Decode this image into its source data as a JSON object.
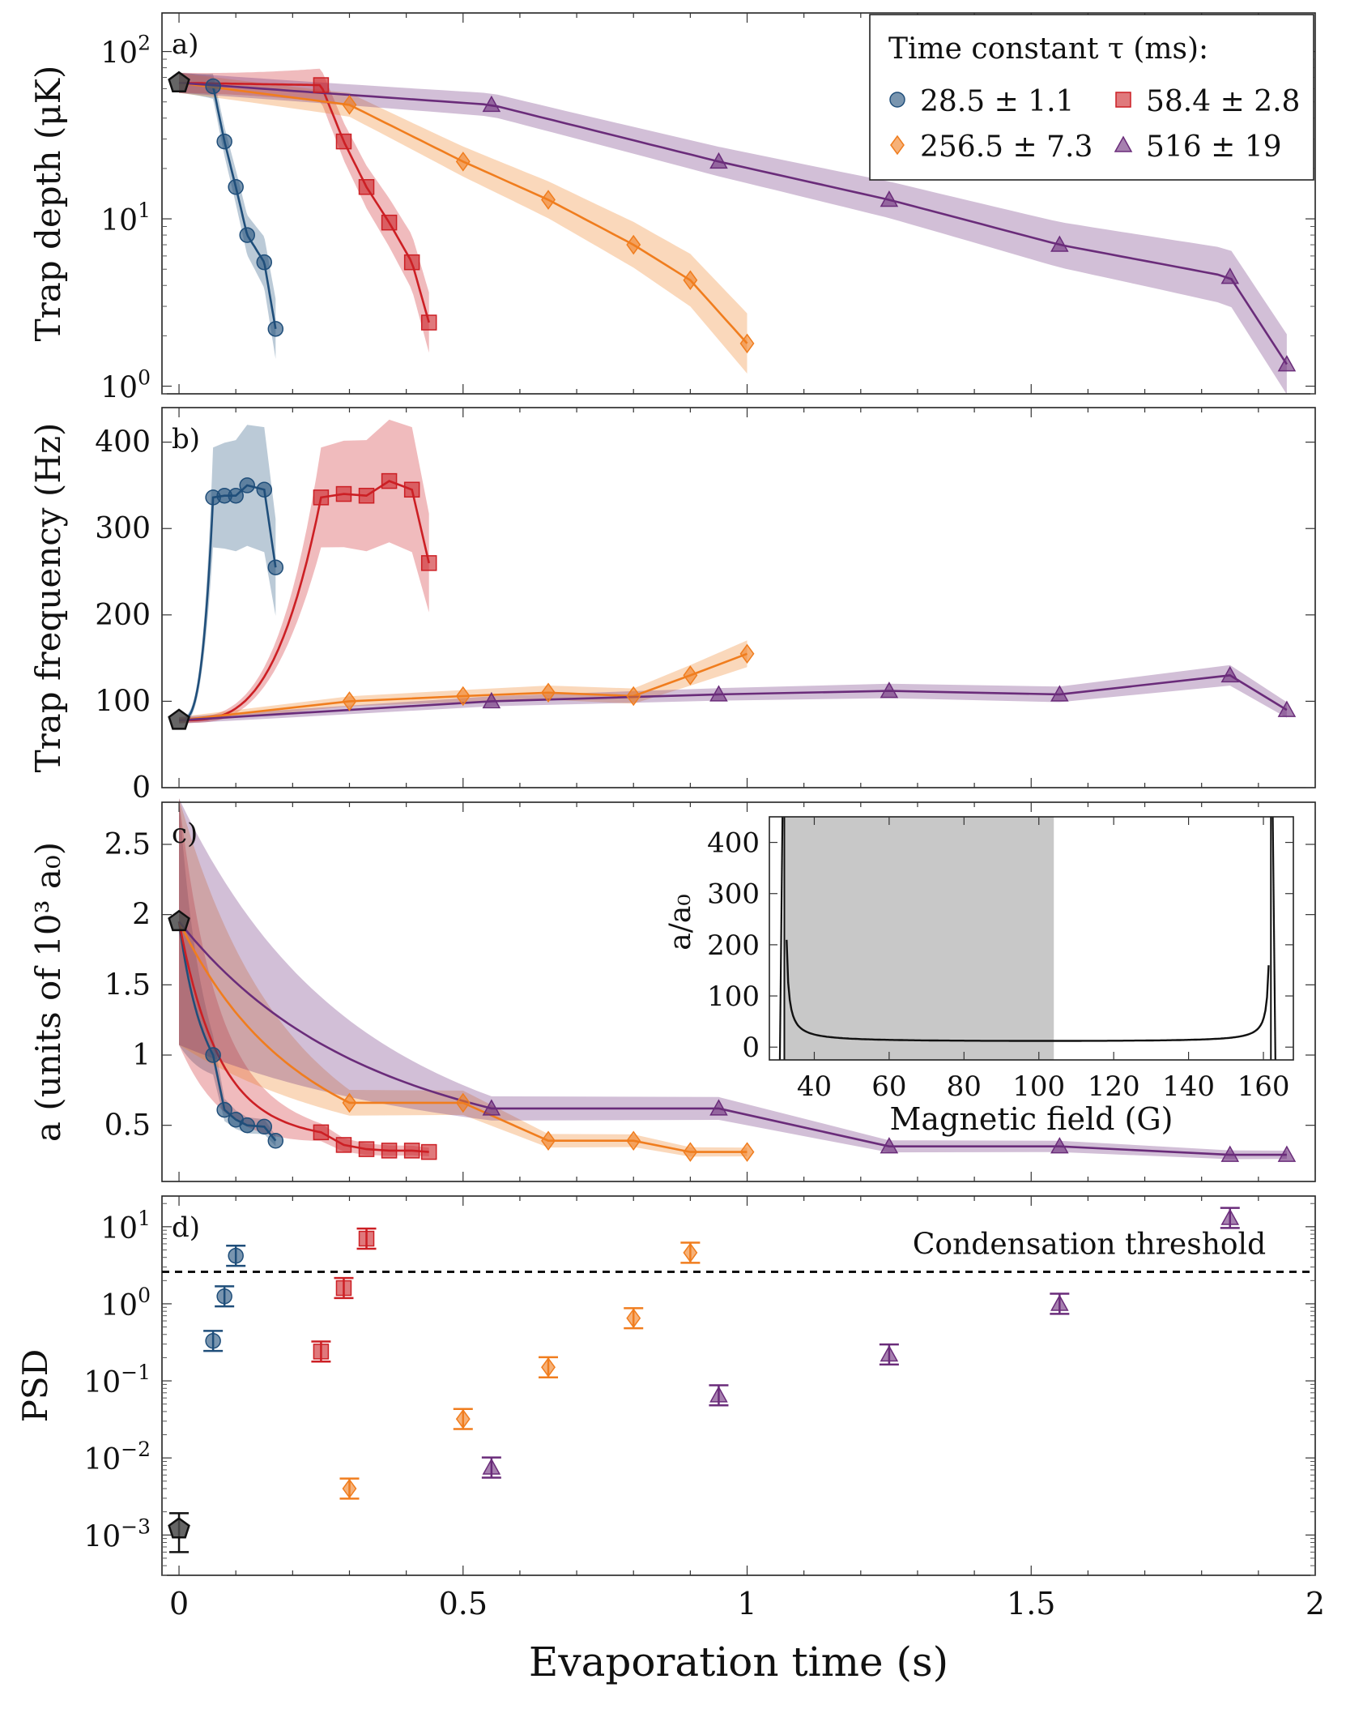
{
  "colors": {
    "blue": "#1f4e7a",
    "red": "#cc1f24",
    "orange": "#f07d1e",
    "purple": "#6a2c7a",
    "gray": "#4a4a4a"
  },
  "chart_data": {
    "type": "line",
    "xlabel": "Evaporation time (s)",
    "x_ticks": [
      "0",
      "0.5",
      "1",
      "1.5",
      "2"
    ],
    "xlim": [
      -0.03,
      2.0
    ],
    "legend": {
      "title": "Time constant τ (ms):",
      "placement": "top-right of panel a",
      "entries": [
        "28.5 ± 1.1",
        "58.4 ± 2.8",
        "256.5 ± 7.3",
        "516 ± 19"
      ]
    },
    "initial_point": {
      "depth": 65,
      "freq": 78,
      "a": 1.95,
      "psd": 0.0012
    },
    "panels": [
      {
        "id": "a",
        "tag": "a)",
        "ylabel": "Trap depth (μK)",
        "scale": "log",
        "ylim": [
          0.9,
          170
        ],
        "y_ticks": [
          {
            "v": 1,
            "m": "10",
            "e": "0"
          },
          {
            "v": 10,
            "m": "10",
            "e": "1"
          },
          {
            "v": 100,
            "m": "10",
            "e": "2"
          }
        ],
        "series": [
          {
            "name": "28.5 ± 1.1",
            "color": "blue",
            "marker": "circle",
            "x": [
              0.06,
              0.08,
              0.1,
              0.12,
              0.15,
              0.17
            ],
            "y": [
              62,
              29,
              15.5,
              8,
              5.5,
              2.2
            ]
          },
          {
            "name": "58.4 ± 2.8",
            "color": "red",
            "marker": "square",
            "x": [
              0.25,
              0.29,
              0.33,
              0.37,
              0.41,
              0.44
            ],
            "y": [
              63,
              29,
              15.5,
              9.5,
              5.5,
              2.4
            ]
          },
          {
            "name": "256.5 ± 7.3",
            "color": "orange",
            "marker": "diamond",
            "x": [
              0.3,
              0.5,
              0.65,
              0.8,
              0.9,
              1.0
            ],
            "y": [
              48,
              22,
              13,
              7,
              4.3,
              1.8
            ]
          },
          {
            "name": "516 ± 19",
            "color": "purple",
            "marker": "triangle",
            "x": [
              0.55,
              0.95,
              1.25,
              1.55,
              1.85,
              1.95
            ],
            "y": [
              48,
              22,
              13,
              7,
              4.5,
              1.35
            ]
          }
        ]
      },
      {
        "id": "b",
        "tag": "b)",
        "ylabel": "Trap frequency (Hz)",
        "scale": "linear",
        "ylim": [
          0,
          440
        ],
        "y_ticks": [
          {
            "v": 0,
            "t": "0"
          },
          {
            "v": 100,
            "t": "100"
          },
          {
            "v": 200,
            "t": "200"
          },
          {
            "v": 300,
            "t": "300"
          },
          {
            "v": 400,
            "t": "400"
          }
        ],
        "series": [
          {
            "name": "28.5 ± 1.1",
            "color": "blue",
            "marker": "circle",
            "x": [
              0.06,
              0.08,
              0.1,
              0.12,
              0.15,
              0.17
            ],
            "y": [
              336,
              338,
              338,
              350,
              345,
              255
            ]
          },
          {
            "name": "58.4 ± 2.8",
            "color": "red",
            "marker": "square",
            "x": [
              0.25,
              0.29,
              0.33,
              0.37,
              0.41,
              0.44
            ],
            "y": [
              336,
              340,
              338,
              355,
              345,
              260
            ]
          },
          {
            "name": "256.5 ± 7.3",
            "color": "orange",
            "marker": "diamond",
            "x": [
              0.3,
              0.5,
              0.65,
              0.8,
              0.9,
              1.0
            ],
            "y": [
              100,
              106,
              110,
              106,
              130,
              155
            ]
          },
          {
            "name": "516 ± 19",
            "color": "purple",
            "marker": "triangle",
            "x": [
              0.55,
              0.95,
              1.25,
              1.55,
              1.85,
              1.95
            ],
            "y": [
              100,
              108,
              112,
              108,
              130,
              90
            ]
          }
        ]
      },
      {
        "id": "c",
        "tag": "c)",
        "ylabel": "a (units of 10³ a₀)",
        "scale": "linear",
        "ylim": [
          0.1,
          2.8
        ],
        "y_ticks": [
          {
            "v": 0.5,
            "t": "0.5"
          },
          {
            "v": 1,
            "t": "1"
          },
          {
            "v": 1.5,
            "t": "1.5"
          },
          {
            "v": 2,
            "t": "2"
          },
          {
            "v": 2.5,
            "t": "2.5"
          }
        ],
        "series": [
          {
            "name": "28.5 ± 1.1",
            "color": "blue",
            "marker": "circle",
            "x": [
              0.06,
              0.08,
              0.1,
              0.12,
              0.15,
              0.17
            ],
            "y": [
              1.0,
              0.61,
              0.54,
              0.5,
              0.49,
              0.39
            ]
          },
          {
            "name": "58.4 ± 2.8",
            "color": "red",
            "marker": "square",
            "x": [
              0.25,
              0.29,
              0.33,
              0.37,
              0.41,
              0.44
            ],
            "y": [
              0.45,
              0.36,
              0.33,
              0.32,
              0.32,
              0.31
            ]
          },
          {
            "name": "256.5 ± 7.3",
            "color": "orange",
            "marker": "diamond",
            "x": [
              0.3,
              0.5,
              0.65,
              0.8,
              0.9,
              1.0
            ],
            "y": [
              0.66,
              0.66,
              0.39,
              0.39,
              0.31,
              0.31
            ]
          },
          {
            "name": "516 ± 19",
            "color": "purple",
            "marker": "triangle",
            "x": [
              0.55,
              0.95,
              1.25,
              1.55,
              1.85,
              1.95
            ],
            "y": [
              0.62,
              0.62,
              0.35,
              0.35,
              0.29,
              0.29
            ]
          }
        ]
      },
      {
        "id": "d",
        "tag": "d)",
        "ylabel": "PSD",
        "scale": "log",
        "ylim": [
          0.0003,
          25
        ],
        "y_ticks": [
          {
            "v": 0.001,
            "m": "10",
            "e": "−3"
          },
          {
            "v": 0.01,
            "m": "10",
            "e": "−2"
          },
          {
            "v": 0.1,
            "m": "10",
            "e": "−1"
          },
          {
            "v": 1,
            "m": "10",
            "e": "0"
          },
          {
            "v": 10,
            "m": "10",
            "e": "1"
          }
        ],
        "threshold": {
          "value": 2.6,
          "label": "Condensation threshold"
        },
        "series": [
          {
            "name": "28.5 ± 1.1",
            "color": "blue",
            "marker": "circle",
            "x": [
              0.06,
              0.08,
              0.1
            ],
            "y": [
              0.33,
              1.25,
              4.2
            ]
          },
          {
            "name": "58.4 ± 2.8",
            "color": "red",
            "marker": "square",
            "x": [
              0.25,
              0.29,
              0.33
            ],
            "y": [
              0.24,
              1.6,
              7.0
            ]
          },
          {
            "name": "256.5 ± 7.3",
            "color": "orange",
            "marker": "diamond",
            "x": [
              0.3,
              0.5,
              0.65,
              0.8,
              0.9
            ],
            "y": [
              0.004,
              0.032,
              0.15,
              0.65,
              4.6
            ]
          },
          {
            "name": "516 ± 19",
            "color": "purple",
            "marker": "triangle",
            "x": [
              0.55,
              0.95,
              1.25,
              1.55,
              1.85
            ],
            "y": [
              0.0075,
              0.065,
              0.22,
              1.0,
              13
            ]
          }
        ]
      }
    ],
    "inset": {
      "type": "line",
      "xlabel": "Magnetic field (G)",
      "ylabel": "a/a₀",
      "xlim": [
        28,
        168
      ],
      "ylim": [
        -25,
        450
      ],
      "x_ticks": [
        "40",
        "60",
        "80",
        "100",
        "120",
        "140",
        "160"
      ],
      "y_ticks": [
        "0",
        "100",
        "200",
        "300",
        "400"
      ],
      "shaded_range": [
        32,
        104
      ],
      "resonances": [
        32,
        162
      ]
    }
  }
}
